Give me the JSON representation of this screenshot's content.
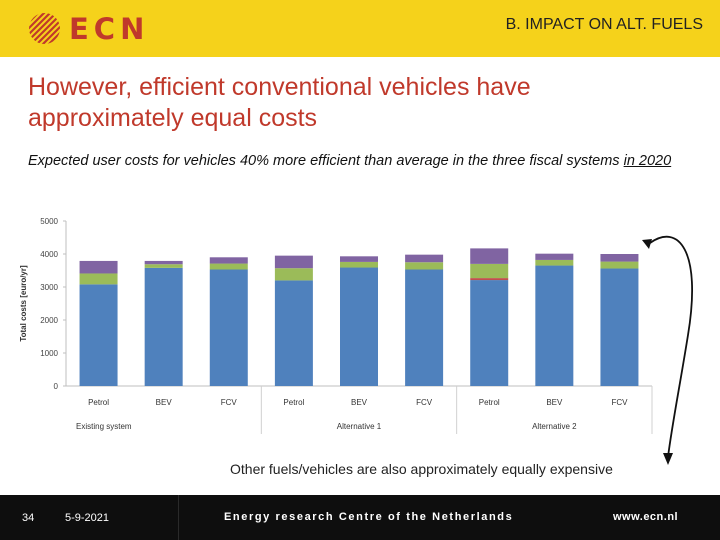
{
  "header": {
    "brand": "ECN",
    "section": "B. IMPACT ON ALT. FUELS"
  },
  "slide": {
    "title": "However, efficient conventional vehicles have approximately equal costs",
    "subtitle_prefix": "Expected user costs for vehicles 40% more efficient than average in the three fiscal systems ",
    "subtitle_underlined": "in 2020",
    "note": "Other fuels/vehicles are also approximately equally expensive"
  },
  "footer": {
    "page": "34",
    "date": "5-9-2021",
    "org": "Energy research Centre of the Netherlands",
    "url": "www.ecn.nl"
  },
  "colors": {
    "brand": "#c0392b",
    "header_bg": "#f5d21b"
  },
  "chart_data": {
    "type": "bar",
    "stacked": true,
    "ylabel": "Total costs [euro/yr]",
    "ylim": [
      0,
      5000
    ],
    "yticks": [
      0,
      1000,
      2000,
      3000,
      4000,
      5000
    ],
    "grid": false,
    "categories": [
      "Petrol",
      "BEV",
      "FCV",
      "Petrol",
      "BEV",
      "FCV",
      "Petrol",
      "BEV",
      "FCV"
    ],
    "groups": [
      {
        "label": "Existing system",
        "count": 3
      },
      {
        "label": "Alternative 1",
        "count": 3
      },
      {
        "label": "Alternative 2",
        "count": 3
      }
    ],
    "series": [
      {
        "color": "#4f81bd",
        "values": [
          3080,
          3580,
          3530,
          3200,
          3590,
          3530,
          3210,
          3650,
          3560
        ]
      },
      {
        "color": "#c0504d",
        "values": [
          0,
          0,
          0,
          0,
          0,
          0,
          60,
          0,
          0
        ]
      },
      {
        "color": "#9bbb59",
        "values": [
          330,
          110,
          180,
          370,
          170,
          220,
          430,
          170,
          210
        ]
      },
      {
        "color": "#8064a2",
        "values": [
          380,
          100,
          190,
          380,
          170,
          230,
          470,
          190,
          230
        ]
      }
    ]
  }
}
